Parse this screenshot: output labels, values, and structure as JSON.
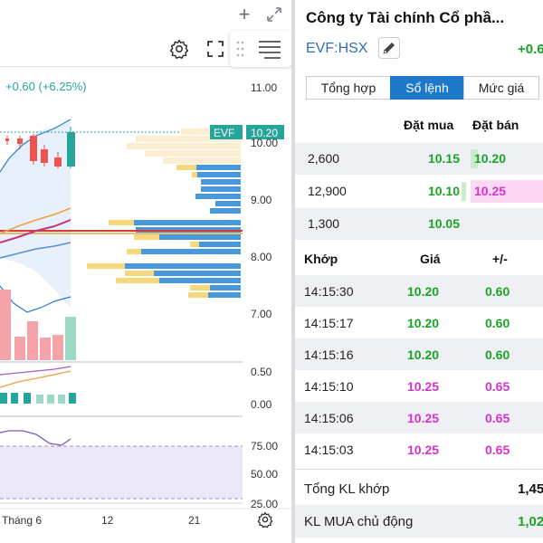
{
  "chart_panel": {
    "price_change": "+0.60 (+6.25%)",
    "price_tag": {
      "symbol": "EVF",
      "price": "10.20"
    },
    "y_axis_ticks": [
      "11.00",
      "10.00",
      "9.00",
      "8.00",
      "7.00"
    ],
    "osc1_ticks": [
      "0.50",
      "0.00"
    ],
    "osc2_ticks": [
      "75.00",
      "50.00",
      "25.00"
    ],
    "x_axis_labels": [
      "Tháng 6",
      "12",
      "21"
    ],
    "colors": {
      "up": "#26a69a",
      "down": "#ef5350",
      "bid_volume": "#4a98dc",
      "ask_volume": "#f5d77e",
      "rsi_band": "#ece7f7"
    }
  },
  "quote_panel": {
    "company_name": "Công ty Tài chính Cổ phầ...",
    "ticker": "EVF:HSX",
    "change": "+0.6",
    "tabs": [
      {
        "label": "Tổng hợp"
      },
      {
        "label": "Sổ lệnh"
      },
      {
        "label": "Mức giá"
      }
    ],
    "orderbook": {
      "bid_header": "Đặt mua",
      "ask_header": "Đặt bán",
      "rows": [
        {
          "volume": "2,600",
          "bid": "10.15",
          "ask": "10.20"
        },
        {
          "volume": "12,900",
          "bid": "10.10",
          "ask": "10.25"
        },
        {
          "volume": "1,300",
          "bid": "10.05",
          "ask": ""
        }
      ]
    },
    "matches": {
      "headers": {
        "time": "Khớp",
        "price": "Giá",
        "change": "+/-"
      },
      "rows": [
        {
          "time": "14:15:30",
          "price": "10.20",
          "change": "0.60",
          "color": "green"
        },
        {
          "time": "14:15:17",
          "price": "10.20",
          "change": "0.60",
          "color": "green"
        },
        {
          "time": "14:15:16",
          "price": "10.20",
          "change": "0.60",
          "color": "green"
        },
        {
          "time": "14:15:10",
          "price": "10.25",
          "change": "0.65",
          "color": "magenta"
        },
        {
          "time": "14:15:06",
          "price": "10.25",
          "change": "0.65",
          "color": "magenta"
        },
        {
          "time": "14:15:03",
          "price": "10.25",
          "change": "0.65",
          "color": "magenta"
        }
      ]
    },
    "summary": [
      {
        "label": "Tổng KL khớp",
        "value": "1,45",
        "color": "black"
      },
      {
        "label": "KL MUA chủ động",
        "value": "1,02",
        "color": "green"
      }
    ]
  }
}
